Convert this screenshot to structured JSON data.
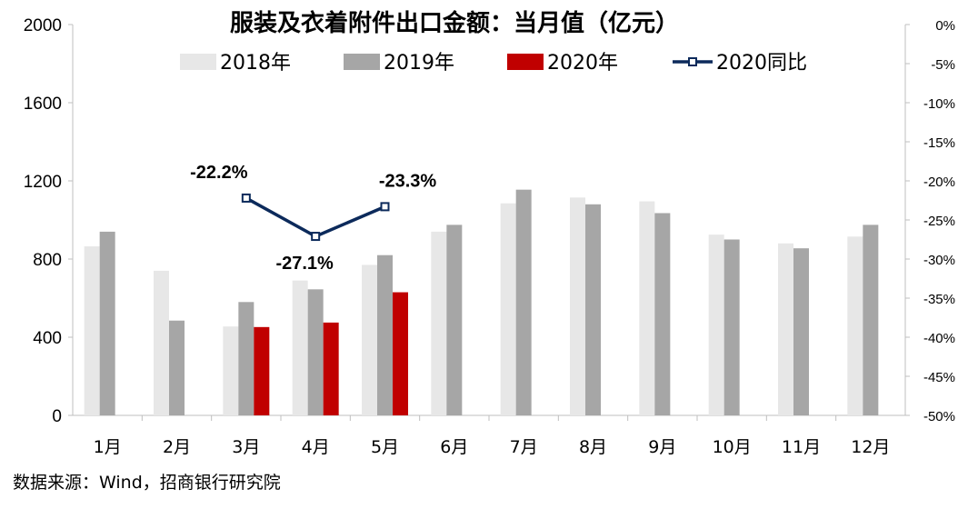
{
  "chart_data": {
    "type": "bar+line",
    "title": "服装及衣着附件出口金额：当月值（亿元）",
    "categories": [
      "1月",
      "2月",
      "3月",
      "4月",
      "5月",
      "6月",
      "7月",
      "8月",
      "9月",
      "10月",
      "11月",
      "12月"
    ],
    "series": [
      {
        "name": "2018年",
        "type": "bar",
        "axis": "left",
        "color": "#e7e7e7",
        "values": [
          865,
          740,
          455,
          690,
          770,
          940,
          1085,
          1115,
          1095,
          925,
          880,
          915
        ]
      },
      {
        "name": "2019年",
        "type": "bar",
        "axis": "left",
        "color": "#a6a6a6",
        "values": [
          940,
          485,
          580,
          645,
          820,
          975,
          1155,
          1080,
          1035,
          900,
          855,
          975
        ]
      },
      {
        "name": "2020年",
        "type": "bar",
        "axis": "left",
        "color": "#c00000",
        "values": [
          null,
          null,
          452,
          475,
          630,
          null,
          null,
          null,
          null,
          null,
          null,
          null
        ]
      },
      {
        "name": "2020同比",
        "type": "line",
        "axis": "right",
        "color": "#0c2a5b",
        "values": [
          null,
          null,
          -22.2,
          -27.1,
          -23.3,
          null,
          null,
          null,
          null,
          null,
          null,
          null
        ],
        "labels": [
          null,
          null,
          "-22.2%",
          "-27.1%",
          "-23.3%",
          null,
          null,
          null,
          null,
          null,
          null,
          null
        ]
      }
    ],
    "y_left": {
      "min": 0,
      "max": 2000,
      "ticks": [
        0,
        400,
        800,
        1200,
        1600,
        2000
      ]
    },
    "y_right": {
      "min": -50,
      "max": 0,
      "ticks": [
        0,
        -5,
        -10,
        -15,
        -20,
        -25,
        -30,
        -35,
        -40,
        -45,
        -50
      ],
      "tick_labels": [
        "0%",
        "-5%",
        "-10%",
        "-15%",
        "-20%",
        "-25%",
        "-30%",
        "-35%",
        "-40%",
        "-45%",
        "-50%"
      ]
    },
    "legend_position": "top",
    "grid": false
  },
  "source": "数据来源：Wind，招商银行研究院"
}
